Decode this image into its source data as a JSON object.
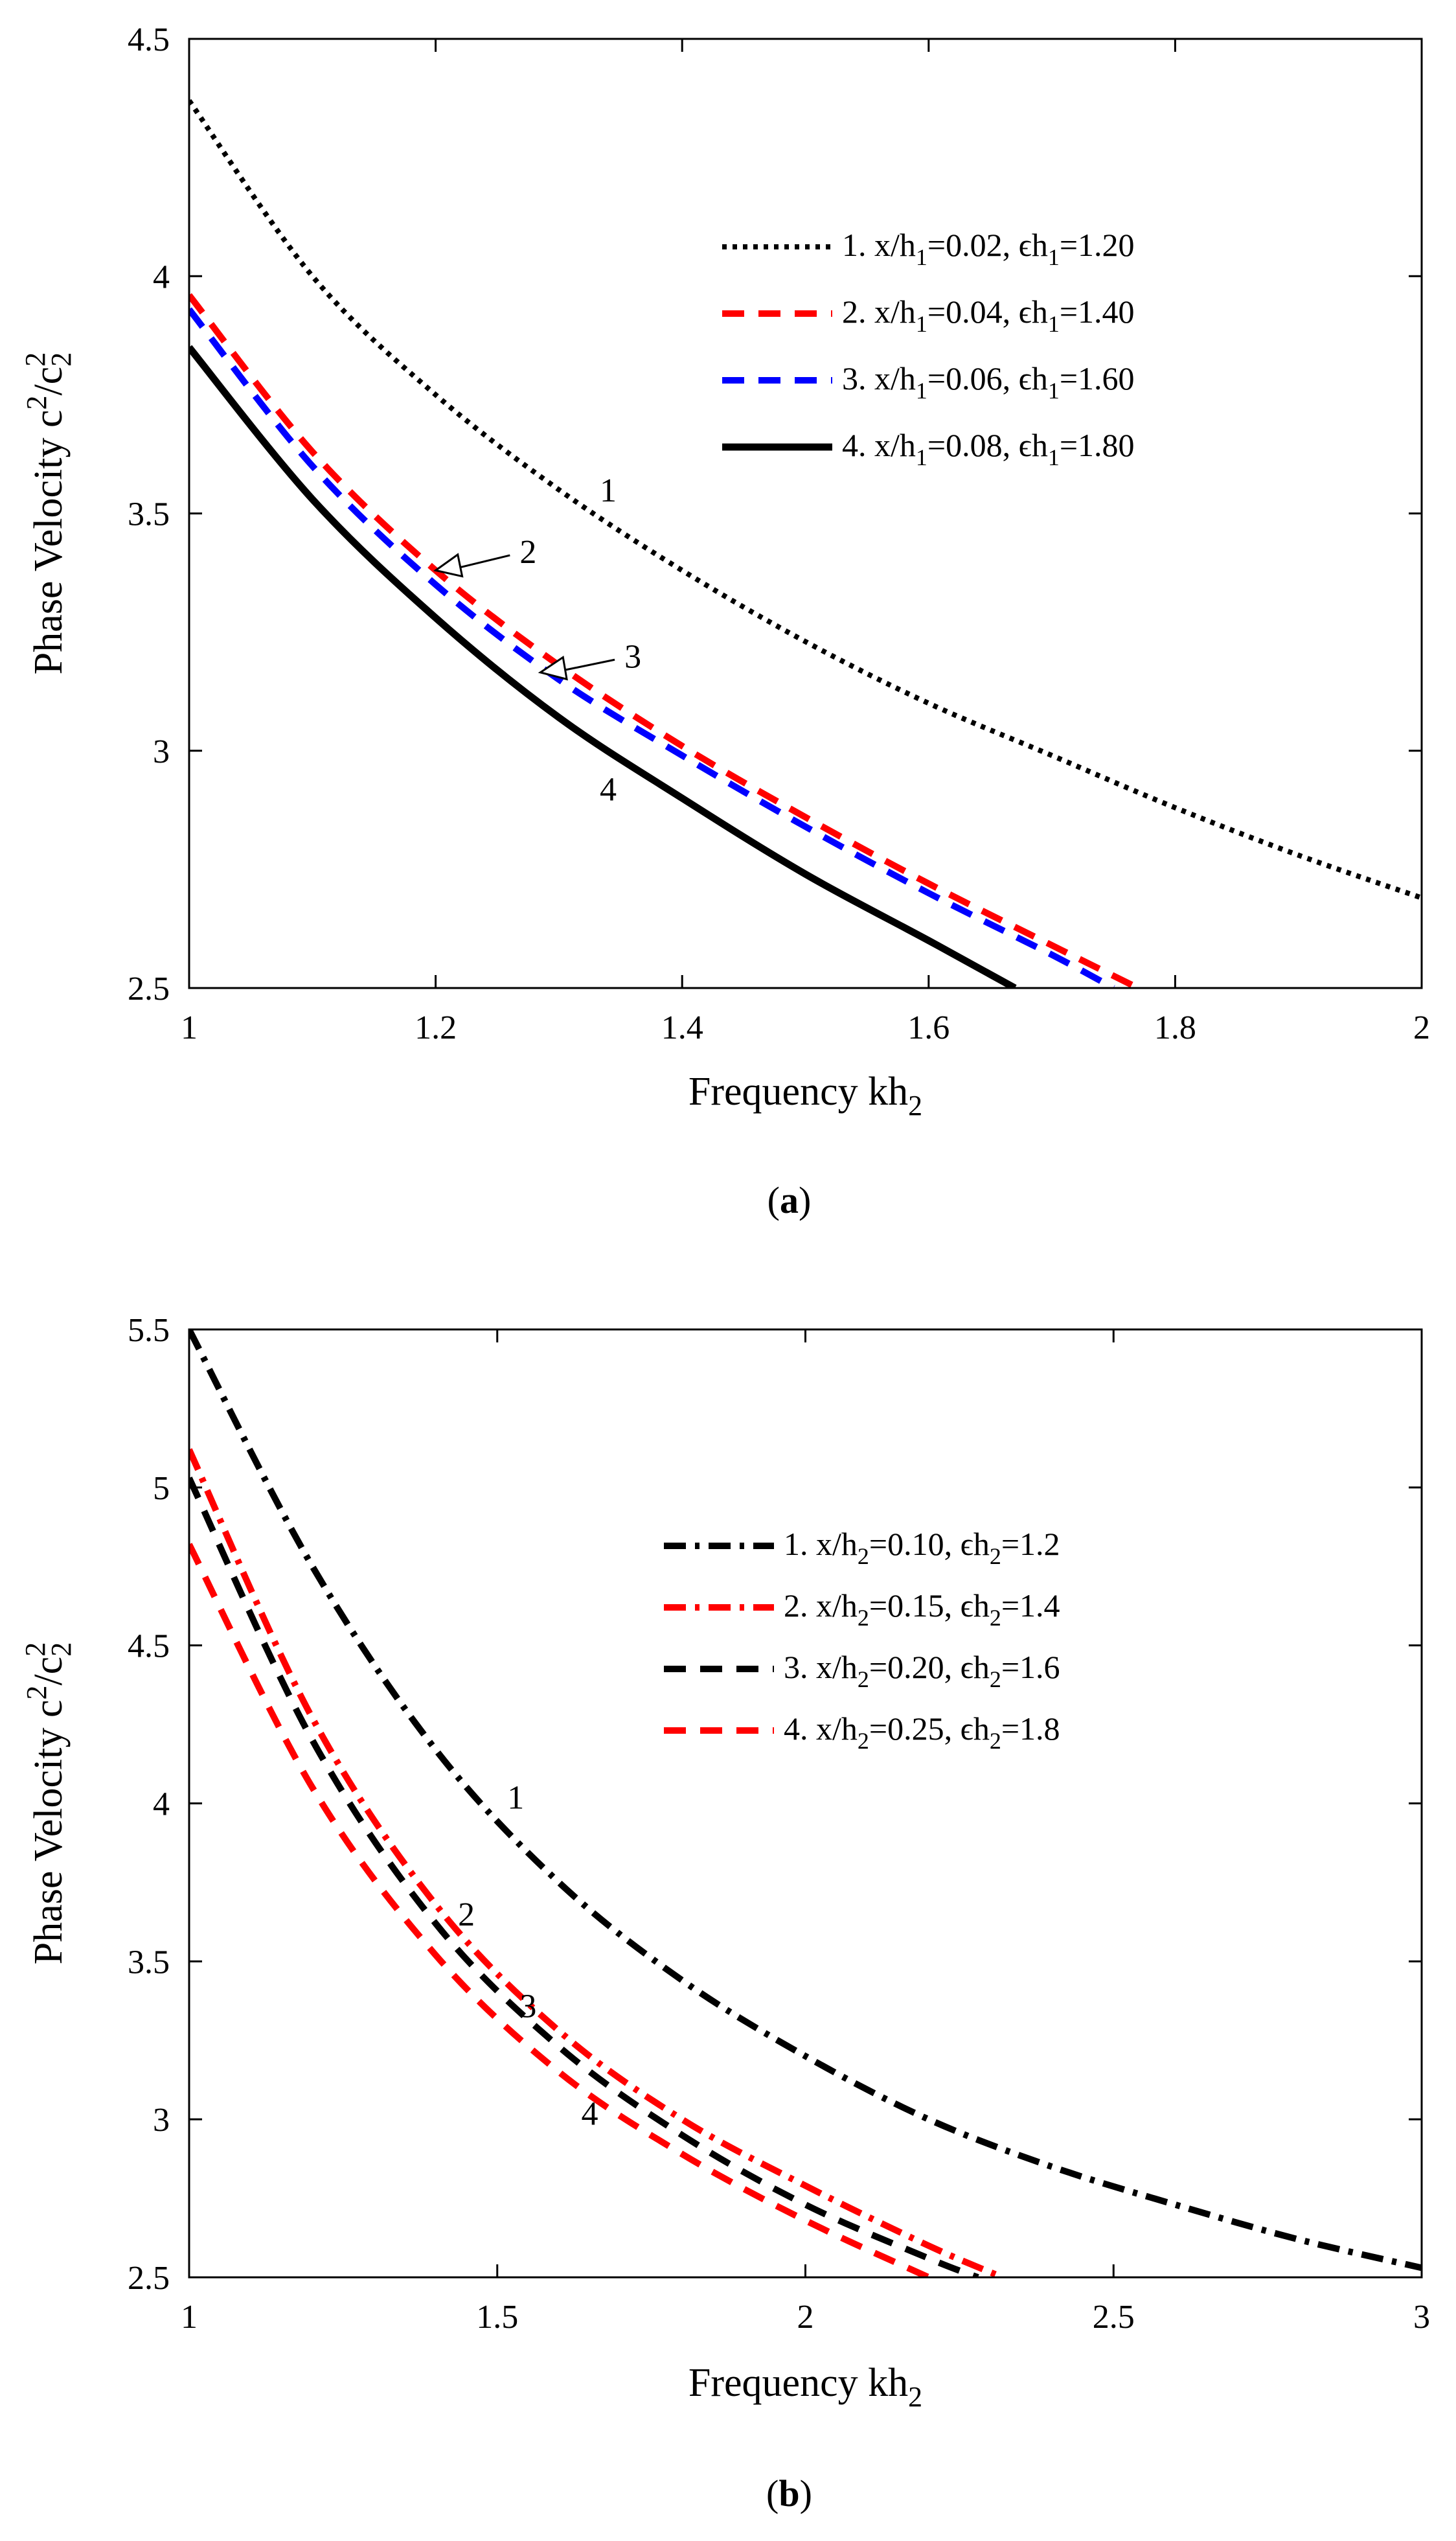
{
  "chart_data": [
    {
      "type": "line",
      "panel": "a",
      "caption": {
        "open": "(",
        "letter": "a",
        "close": ")"
      },
      "xlabel": {
        "main": "Frequency kh",
        "sub": "2"
      },
      "ylabel": {
        "pre": "Phase Velocity c",
        "sup1": "2",
        "mid": "/c",
        "sub2": "2",
        "sup2": "2"
      },
      "xlim": [
        1,
        2
      ],
      "ylim": [
        2.5,
        4.5
      ],
      "xticks": [
        1,
        1.2,
        1.4,
        1.6,
        1.8,
        2
      ],
      "yticks": [
        2.5,
        3,
        3.5,
        4,
        4.5
      ],
      "xtick_labels": [
        "1",
        "1.2",
        "1.4",
        "1.6",
        "1.8",
        "2"
      ],
      "ytick_labels": [
        "2.5",
        "3",
        "3.5",
        "4",
        "4.5"
      ],
      "legend_position": "top-right",
      "series": [
        {
          "name": "1",
          "legend": {
            "pre": "1. x/h",
            "sub": "1",
            "mid": "=0.02, ϵh",
            "sub2": "1",
            "post": "=1.20"
          },
          "color": "#000000",
          "style": "dotted",
          "x": [
            1.0,
            1.1,
            1.2,
            1.3,
            1.4,
            1.5,
            1.6,
            1.7,
            1.8,
            1.9,
            2.0
          ],
          "y": [
            4.37,
            4.0,
            3.75,
            3.55,
            3.38,
            3.23,
            3.1,
            2.99,
            2.88,
            2.78,
            2.69
          ]
        },
        {
          "name": "2",
          "legend": {
            "pre": "2. x/h",
            "sub": "1",
            "mid": "=0.04, ϵh",
            "sub2": "1",
            "post": "=1.40"
          },
          "color": "#ff0000",
          "style": "dashed",
          "x": [
            1.0,
            1.1,
            1.2,
            1.3,
            1.4,
            1.5,
            1.6,
            1.7,
            1.77
          ],
          "y": [
            3.96,
            3.63,
            3.38,
            3.18,
            3.01,
            2.86,
            2.72,
            2.59,
            2.5
          ]
        },
        {
          "name": "3",
          "legend": {
            "pre": "3. x/h",
            "sub": "1",
            "mid": "=0.06, ϵh",
            "sub2": "1",
            "post": "=1.60"
          },
          "color": "#0000ff",
          "style": "dashed",
          "x": [
            1.0,
            1.1,
            1.2,
            1.3,
            1.4,
            1.5,
            1.6,
            1.7,
            1.75
          ],
          "y": [
            3.93,
            3.6,
            3.35,
            3.15,
            2.99,
            2.84,
            2.7,
            2.57,
            2.5
          ]
        },
        {
          "name": "4",
          "legend": {
            "pre": "4. x/h",
            "sub": "1",
            "mid": "=0.08, ϵh",
            "sub2": "1",
            "post": "=1.80"
          },
          "color": "#000000",
          "style": "solid",
          "x": [
            1.0,
            1.1,
            1.2,
            1.3,
            1.4,
            1.5,
            1.6,
            1.67
          ],
          "y": [
            3.85,
            3.53,
            3.28,
            3.07,
            2.9,
            2.74,
            2.6,
            2.5
          ]
        }
      ],
      "annotations": [
        {
          "text": "1",
          "x": 1.34,
          "y": 3.55,
          "arrow": false
        },
        {
          "text": "2",
          "x": 1.275,
          "y": 3.42,
          "arrow": true,
          "tip_x": 1.2,
          "tip_y": 3.38
        },
        {
          "text": "3",
          "x": 1.36,
          "y": 3.2,
          "arrow": true,
          "tip_x": 1.285,
          "tip_y": 3.165
        },
        {
          "text": "4",
          "x": 1.34,
          "y": 2.92,
          "arrow": false
        }
      ]
    },
    {
      "type": "line",
      "panel": "b",
      "caption": {
        "open": "(",
        "letter": "b",
        "close": ")"
      },
      "xlabel": {
        "main": "Frequency kh",
        "sub": "2"
      },
      "ylabel": {
        "pre": "Phase Velocity c",
        "sup1": "2",
        "mid": "/c",
        "sub2": "2",
        "sup2": "2"
      },
      "xlim": [
        1,
        3
      ],
      "ylim": [
        2.5,
        5.5
      ],
      "xticks": [
        1,
        1.5,
        2,
        2.5,
        3
      ],
      "yticks": [
        2.5,
        3,
        3.5,
        4,
        4.5,
        5,
        5.5
      ],
      "xtick_labels": [
        "1",
        "1.5",
        "2",
        "2.5",
        "3"
      ],
      "ytick_labels": [
        "2.5",
        "3",
        "3.5",
        "4",
        "4.5",
        "5",
        "5.5"
      ],
      "legend_position": "middle-right",
      "series": [
        {
          "name": "1",
          "legend": {
            "pre": "1. x/h",
            "sub": "2",
            "mid": "=0.10, ϵh",
            "sub2": "2",
            "post": "=1.2"
          },
          "color": "#000000",
          "style": "dashdot",
          "x": [
            1.0,
            1.2,
            1.4,
            1.6,
            1.8,
            2.0,
            2.2,
            2.4,
            2.6,
            2.8,
            3.0
          ],
          "y": [
            5.5,
            4.75,
            4.17,
            3.75,
            3.44,
            3.2,
            3.0,
            2.85,
            2.73,
            2.62,
            2.53
          ]
        },
        {
          "name": "2",
          "legend": {
            "pre": "2. x/h",
            "sub": "2",
            "mid": "=0.15, ϵh",
            "sub2": "2",
            "post": "=1.4"
          },
          "color": "#ff0000",
          "style": "dashdot",
          "x": [
            1.0,
            1.2,
            1.4,
            1.6,
            1.8,
            2.0,
            2.2,
            2.32
          ],
          "y": [
            5.12,
            4.27,
            3.68,
            3.28,
            3.0,
            2.79,
            2.6,
            2.5
          ]
        },
        {
          "name": "3",
          "legend": {
            "pre": "3. x/h",
            "sub": "2",
            "mid": "=0.20, ϵh",
            "sub2": "2",
            "post": "=1.6"
          },
          "color": "#000000",
          "style": "dashed",
          "x": [
            1.0,
            1.2,
            1.4,
            1.6,
            1.8,
            2.0,
            2.2,
            2.28
          ],
          "y": [
            5.03,
            4.2,
            3.62,
            3.23,
            2.95,
            2.73,
            2.56,
            2.5
          ]
        },
        {
          "name": "4",
          "legend": {
            "pre": "4. x/h",
            "sub": "2",
            "mid": "=0.25, ϵh",
            "sub2": "2",
            "post": "=1.8"
          },
          "color": "#ff0000",
          "style": "dashed",
          "x": [
            1.0,
            1.2,
            1.4,
            1.6,
            1.8,
            2.0,
            2.2
          ],
          "y": [
            4.82,
            4.05,
            3.52,
            3.15,
            2.89,
            2.68,
            2.5
          ]
        }
      ],
      "annotations": [
        {
          "text": "1",
          "x": 1.53,
          "y": 4.02,
          "arrow": false
        },
        {
          "text": "2",
          "x": 1.45,
          "y": 3.65,
          "arrow": false
        },
        {
          "text": "3",
          "x": 1.55,
          "y": 3.36,
          "arrow": false
        },
        {
          "text": "4",
          "x": 1.65,
          "y": 3.02,
          "arrow": false
        }
      ]
    }
  ]
}
